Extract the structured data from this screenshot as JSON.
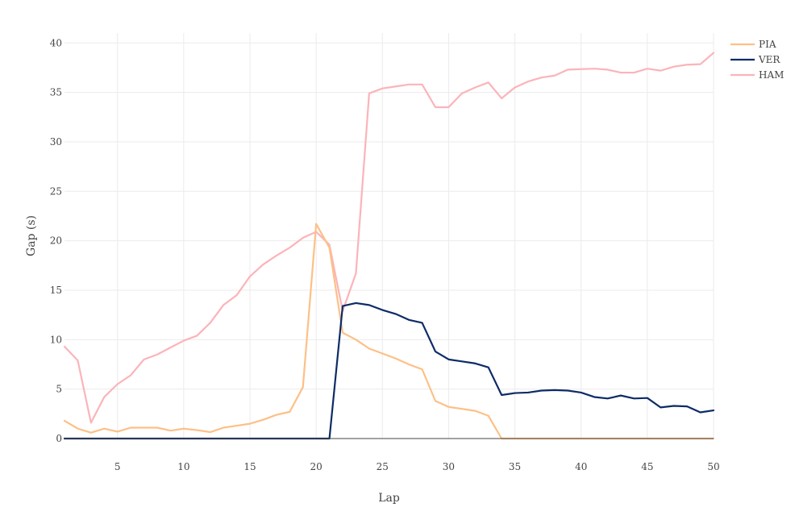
{
  "chart_data": {
    "type": "line",
    "title": "",
    "xlabel": "Lap",
    "ylabel": "Gap (s)",
    "xlim": [
      1,
      50
    ],
    "ylim": [
      0,
      41
    ],
    "xticks": [
      5,
      10,
      15,
      20,
      25,
      30,
      35,
      40,
      45,
      50
    ],
    "yticks": [
      0,
      5,
      10,
      15,
      20,
      25,
      30,
      35,
      40
    ],
    "grid": true,
    "legend_position": "top-right",
    "x": [
      1,
      2,
      3,
      4,
      5,
      6,
      7,
      8,
      9,
      10,
      11,
      12,
      13,
      14,
      15,
      16,
      17,
      18,
      19,
      20,
      21,
      22,
      23,
      24,
      25,
      26,
      27,
      28,
      29,
      30,
      31,
      32,
      33,
      34,
      35,
      36,
      37,
      38,
      39,
      40,
      41,
      42,
      43,
      44,
      45,
      46,
      47,
      48,
      49,
      50
    ],
    "series": [
      {
        "name": "PIA",
        "color": "#fdc086",
        "values": [
          1.8,
          1.0,
          0.6,
          1.0,
          0.7,
          1.1,
          1.1,
          1.1,
          0.8,
          1.0,
          0.85,
          0.65,
          1.1,
          1.3,
          1.5,
          1.9,
          2.4,
          2.7,
          5.2,
          21.7,
          19.3,
          10.7,
          10.0,
          9.1,
          8.6,
          8.1,
          7.5,
          7.0,
          3.8,
          3.2,
          3.0,
          2.8,
          2.3,
          0.0,
          0.0,
          0.0,
          0.0,
          0.0,
          0.0,
          0.0,
          0.0,
          0.0,
          0.0,
          0.0,
          0.0,
          0.0,
          0.0,
          0.0,
          0.0,
          0.0
        ]
      },
      {
        "name": "VER",
        "color": "#0d2b66",
        "values": [
          0,
          0,
          0,
          0,
          0,
          0,
          0,
          0,
          0,
          0,
          0,
          0,
          0,
          0,
          0,
          0,
          0,
          0,
          0,
          0,
          0,
          13.4,
          13.7,
          13.5,
          13.0,
          12.6,
          12.0,
          11.7,
          8.8,
          8.0,
          7.8,
          7.6,
          7.2,
          4.4,
          4.6,
          4.65,
          4.85,
          4.9,
          4.85,
          4.65,
          4.2,
          4.05,
          4.35,
          4.05,
          4.1,
          3.15,
          3.3,
          3.25,
          2.65,
          2.85
        ]
      },
      {
        "name": "HAM",
        "color": "#fbb4b9",
        "values": [
          9.3,
          7.9,
          1.6,
          4.2,
          5.5,
          6.4,
          8.0,
          8.5,
          9.2,
          9.9,
          10.4,
          11.7,
          13.5,
          14.5,
          16.4,
          17.6,
          18.5,
          19.3,
          20.3,
          20.9,
          19.6,
          12.9,
          16.7,
          34.9,
          35.4,
          35.6,
          35.8,
          35.8,
          33.5,
          33.5,
          34.9,
          35.5,
          36.0,
          34.4,
          35.5,
          36.1,
          36.5,
          36.7,
          37.3,
          37.35,
          37.4,
          37.3,
          37.0,
          37.0,
          37.4,
          37.2,
          37.6,
          37.8,
          37.85,
          39.0
        ]
      }
    ]
  }
}
